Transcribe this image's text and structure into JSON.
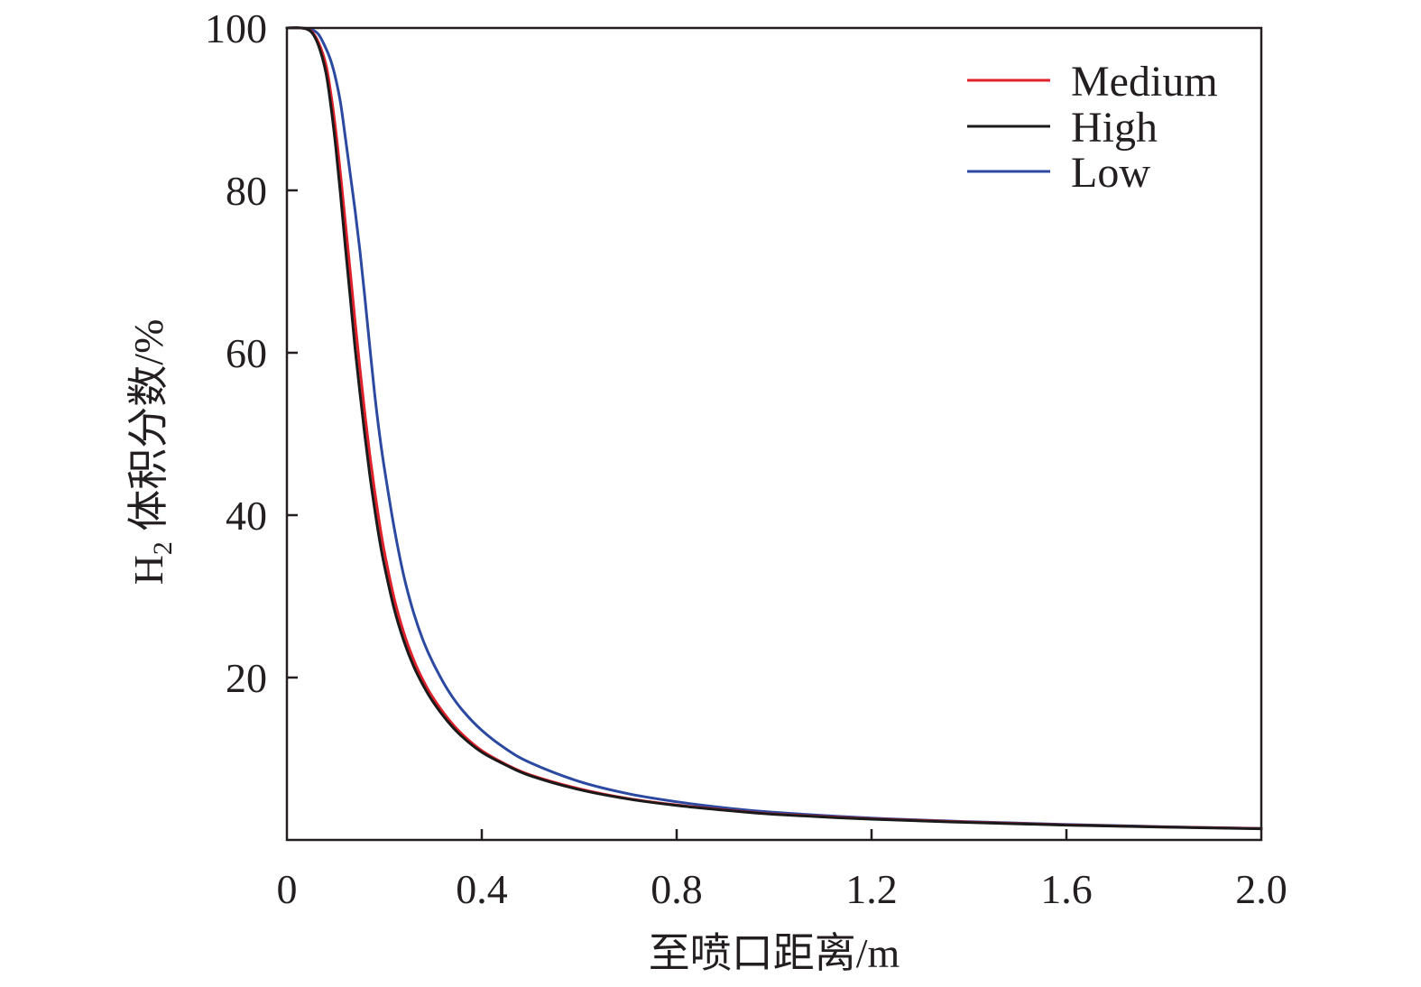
{
  "chart_data": {
    "type": "line",
    "title": "",
    "xlabel": "至喷口距离/m",
    "ylabel": {
      "prefix": "H",
      "subscript": "2",
      "rest": " 体积分数/%"
    },
    "xlim": [
      0,
      2.0
    ],
    "ylim": [
      0,
      100
    ],
    "x_ticks": [
      0,
      0.4,
      0.8,
      1.2,
      1.6,
      2.0
    ],
    "x_tick_labels": [
      "0",
      "0.4",
      "0.8",
      "1.2",
      "1.6",
      "2.0"
    ],
    "y_ticks": [
      20,
      40,
      60,
      80,
      100
    ],
    "y_tick_labels": [
      "20",
      "40",
      "60",
      "80",
      "100"
    ],
    "grid": false,
    "legend_position": "top-right",
    "series": [
      {
        "name": "Medium",
        "color": "#e0202a",
        "x": [
          0,
          0.03,
          0.05,
          0.065,
          0.08,
          0.09,
          0.1,
          0.11,
          0.12,
          0.13,
          0.14,
          0.15,
          0.16,
          0.17,
          0.18,
          0.19,
          0.2,
          0.22,
          0.24,
          0.26,
          0.28,
          0.3,
          0.33,
          0.36,
          0.4,
          0.45,
          0.5,
          0.6,
          0.7,
          0.8,
          0.9,
          1.0,
          1.2,
          1.4,
          1.6,
          1.8,
          2.0
        ],
        "y": [
          100,
          100,
          99.6,
          98.2,
          95.5,
          92.0,
          87.5,
          82.0,
          76.0,
          70.0,
          63.8,
          58.0,
          52.5,
          47.5,
          43.0,
          39.0,
          35.5,
          29.8,
          25.5,
          22.2,
          19.6,
          17.5,
          15.0,
          13.0,
          11.0,
          9.3,
          8.0,
          6.3,
          5.1,
          4.3,
          3.7,
          3.2,
          2.6,
          2.2,
          1.85,
          1.6,
          1.4
        ]
      },
      {
        "name": "High",
        "color": "#1a1a1a",
        "x": [
          0,
          0.03,
          0.05,
          0.065,
          0.08,
          0.09,
          0.1,
          0.11,
          0.12,
          0.13,
          0.14,
          0.15,
          0.16,
          0.17,
          0.18,
          0.19,
          0.2,
          0.22,
          0.24,
          0.26,
          0.28,
          0.3,
          0.33,
          0.36,
          0.4,
          0.45,
          0.5,
          0.6,
          0.7,
          0.8,
          0.9,
          1.0,
          1.2,
          1.4,
          1.6,
          1.8,
          2.0
        ],
        "y": [
          100,
          100,
          99.5,
          97.8,
          94.5,
          90.5,
          85.5,
          79.5,
          73.0,
          66.8,
          60.5,
          55.0,
          49.8,
          45.0,
          40.8,
          37.0,
          33.8,
          28.5,
          24.5,
          21.4,
          19.0,
          17.0,
          14.6,
          12.7,
          10.8,
          9.2,
          7.9,
          6.2,
          5.05,
          4.25,
          3.65,
          3.15,
          2.55,
          2.15,
          1.82,
          1.58,
          1.38
        ]
      },
      {
        "name": "Low",
        "color": "#2b49a0",
        "x": [
          0,
          0.03,
          0.05,
          0.065,
          0.08,
          0.09,
          0.1,
          0.11,
          0.12,
          0.13,
          0.14,
          0.15,
          0.16,
          0.17,
          0.18,
          0.19,
          0.2,
          0.22,
          0.24,
          0.26,
          0.28,
          0.3,
          0.33,
          0.36,
          0.4,
          0.45,
          0.5,
          0.6,
          0.7,
          0.8,
          0.9,
          1.0,
          1.2,
          1.4,
          1.6,
          1.8,
          2.0
        ],
        "y": [
          100,
          100,
          99.8,
          99.2,
          97.5,
          96.0,
          93.8,
          90.8,
          86.5,
          82.0,
          77.5,
          72.5,
          66.8,
          60.8,
          55.0,
          50.0,
          45.8,
          38.5,
          32.5,
          28.0,
          24.5,
          21.8,
          18.5,
          16.0,
          13.5,
          11.2,
          9.5,
          7.2,
          5.7,
          4.7,
          3.95,
          3.4,
          2.7,
          2.25,
          1.9,
          1.63,
          1.42
        ]
      }
    ]
  }
}
